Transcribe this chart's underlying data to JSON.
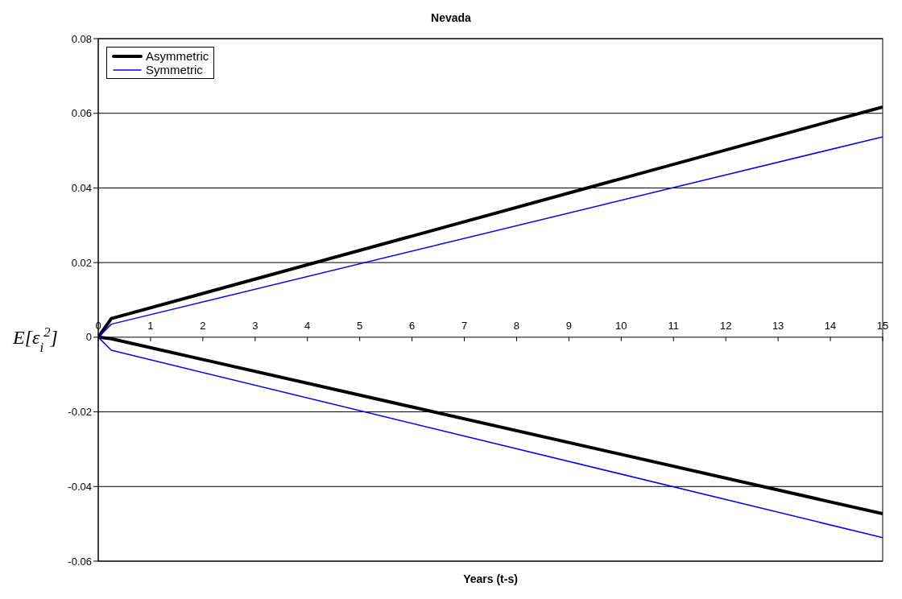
{
  "chart_data": {
    "type": "line",
    "title": "Nevada",
    "xlabel": "Years (t-s)",
    "ylabel": "E[ε$_{i}$$^{2}$]",
    "xlim": [
      0,
      15
    ],
    "xticks": [
      0,
      1,
      2,
      3,
      4,
      5,
      6,
      7,
      8,
      9,
      10,
      11,
      12,
      13,
      14,
      15
    ],
    "ylim": [
      -0.06,
      0.08
    ],
    "yticks": [
      -0.06,
      -0.04,
      -0.02,
      0,
      0.02,
      0.04,
      0.06,
      0.08
    ],
    "grid": "y",
    "legend": "top left",
    "marker": "none",
    "line_style": "solid",
    "series": [
      {
        "name": "Asymmetric",
        "color": "#000000",
        "x": [
          0,
          0.25,
          15
        ],
        "values": [
          0,
          0.005,
          0.0617
        ]
      },
      {
        "name": "Symmetric",
        "color": "#0000ff",
        "x": [
          0,
          0.25,
          15
        ],
        "values": [
          0,
          0.0035,
          0.0537
        ]
      },
      {
        "color": "#000000",
        "x": [
          0,
          0.25,
          15
        ],
        "values": [
          0,
          -0.0004,
          -0.0473
        ]
      },
      {
        "color": "#0000ff",
        "x": [
          0,
          0.25,
          15
        ],
        "values": [
          0,
          -0.0035,
          -0.0537
        ]
      }
    ]
  }
}
